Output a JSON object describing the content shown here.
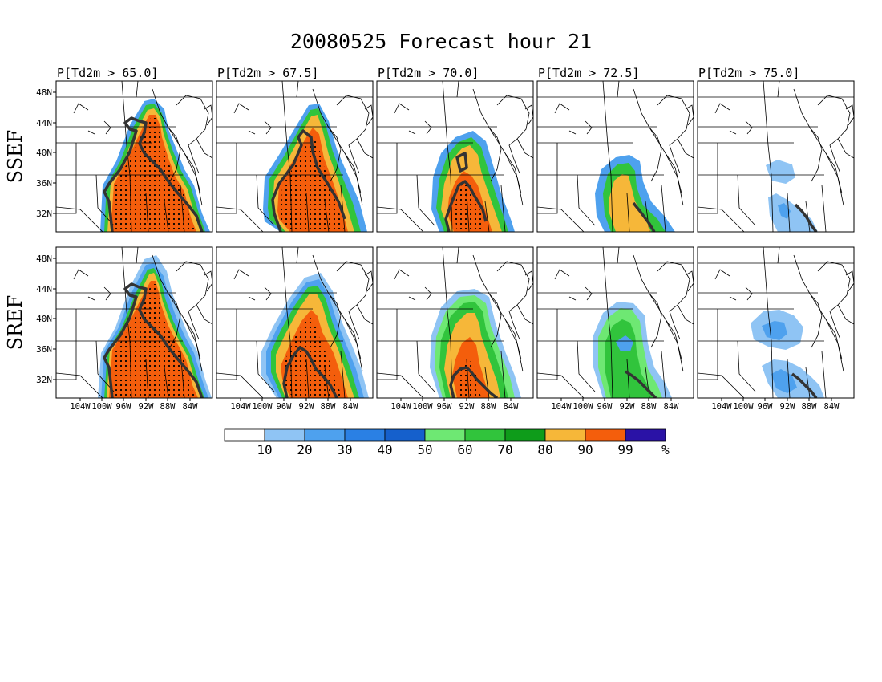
{
  "title": "20080525 Forecast hour 21",
  "panel_titles": [
    "P[Td2m > 65.0]",
    "P[Td2m > 67.5]",
    "P[Td2m > 70.0]",
    "P[Td2m > 72.5]",
    "P[Td2m > 75.0]"
  ],
  "row_labels": [
    "SSEF",
    "SREF"
  ],
  "lat_ticks": [
    "48N",
    "44N",
    "40N",
    "36N",
    "32N"
  ],
  "lon_ticks": [
    "104W",
    "100W",
    "96W",
    "92W",
    "88W",
    "84W"
  ],
  "colorbar": {
    "labels": [
      "10",
      "20",
      "30",
      "40",
      "50",
      "60",
      "70",
      "80",
      "90",
      "99"
    ],
    "unit": "%",
    "colors": [
      "#ffffff",
      "#8fc4f4",
      "#4ea1ee",
      "#2a80e4",
      "#1560cc",
      "#6ee873",
      "#31c43c",
      "#0e9c1a",
      "#f6b739",
      "#f45e0c",
      "#2a12a6"
    ]
  },
  "colors": {
    "map_lines": "#000000",
    "contour": "#333333",
    "stipple": "#000000"
  }
}
